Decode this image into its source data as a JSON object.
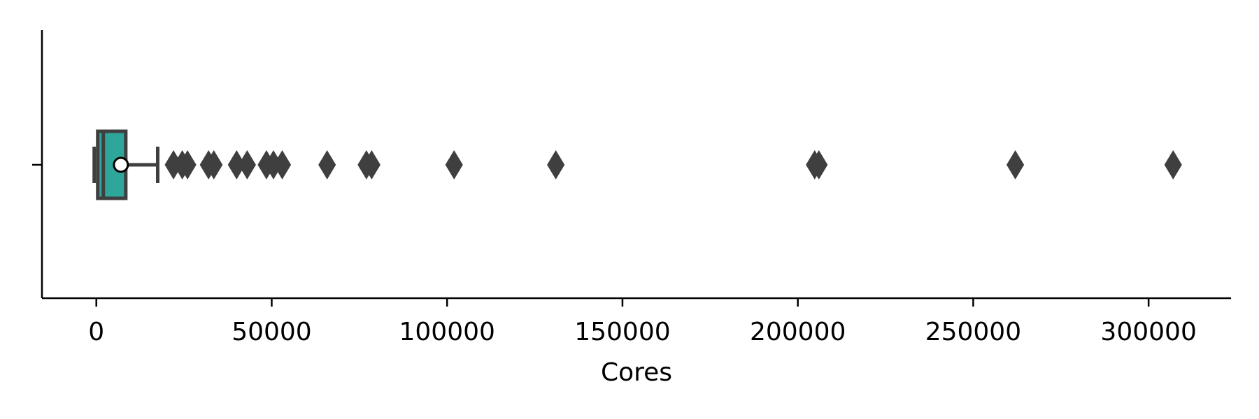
{
  "chart_data": {
    "type": "boxplot",
    "orientation": "horizontal",
    "xlabel": "Cores",
    "ylabel": "",
    "xlim": [
      -15500,
      323500
    ],
    "xticks": [
      0,
      50000,
      100000,
      150000,
      200000,
      250000,
      300000
    ],
    "xtick_labels": [
      "0",
      "50000",
      "100000",
      "150000",
      "200000",
      "250000",
      "300000"
    ],
    "box": {
      "whisker_low": 0,
      "q1": 0,
      "median": 2000,
      "q3": 8000,
      "whisker_high": 17500,
      "mean": 7000
    },
    "outliers": [
      22000,
      24500,
      26000,
      32000,
      33500,
      40000,
      43000,
      48500,
      50500,
      53000,
      65800,
      77000,
      78500,
      102000,
      131000,
      204800,
      206000,
      262000,
      307000
    ],
    "colors": {
      "box_fill": "#2fa69a",
      "line": "#3f3f3f",
      "mean_fill": "#ffffff",
      "axis": "#000000"
    },
    "grid": false,
    "legend": "none"
  }
}
